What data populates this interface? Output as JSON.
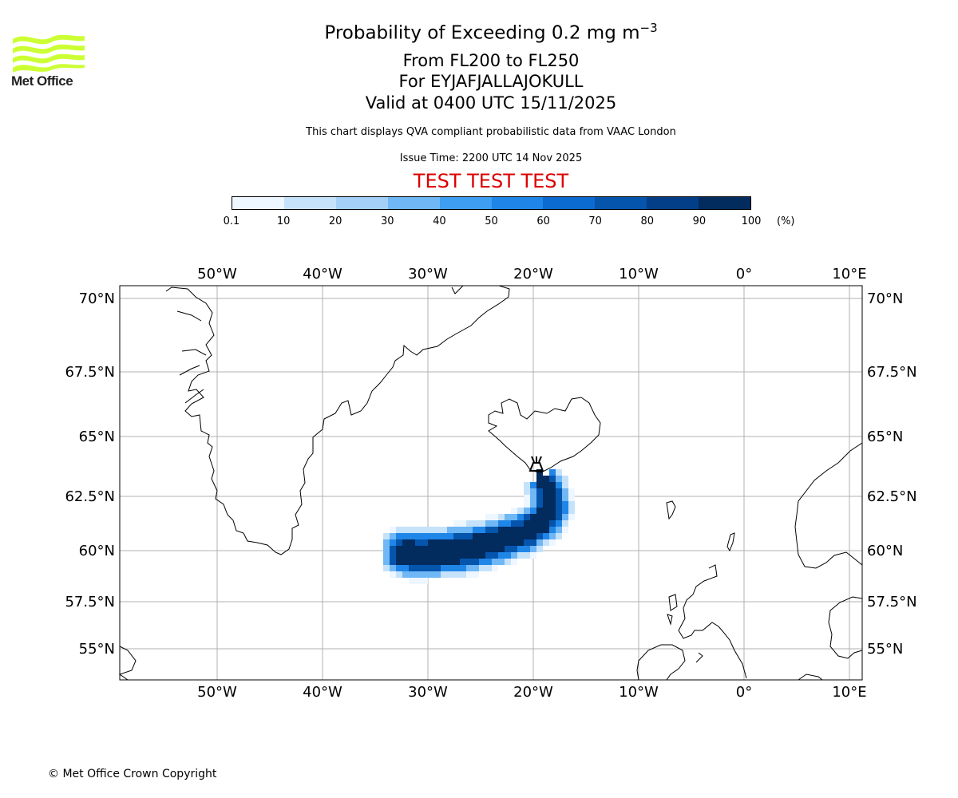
{
  "header": {
    "title_prefix": "Probability of Exceeding 0.2 mg m",
    "title_superscript": "−3",
    "line2": "From FL200 to FL250",
    "line3": "For EYJAFJALLAJOKULL",
    "line4": "Valid at 0400 UTC 15/11/2025",
    "description": "This chart displays QVA compliant probabilistic data from VAAC London",
    "issue_time": "Issue Time: 2200 UTC 14 Nov 2025",
    "test_banner": "TEST TEST TEST",
    "test_color": "#dd0000"
  },
  "logo": {
    "text": "Met Office",
    "wave_color": "#ccff33"
  },
  "colorbar": {
    "ticks": [
      "0.1",
      "10",
      "20",
      "30",
      "40",
      "50",
      "60",
      "70",
      "80",
      "90",
      "100"
    ],
    "unit": "(%)",
    "colors": [
      "#eef6ff",
      "#c6e2fb",
      "#a4d0f8",
      "#6fb7f5",
      "#3d9ef2",
      "#1f86e8",
      "#0b6bd0",
      "#0555ad",
      "#033f88",
      "#022b5e"
    ]
  },
  "map": {
    "lon_ticks": [
      "50°W",
      "40°W",
      "30°W",
      "20°W",
      "10°W",
      "0°",
      "10°E"
    ],
    "lat_ticks": [
      "70°N",
      "67.5°N",
      "65°N",
      "62.5°N",
      "60°N",
      "57.5°N",
      "55°N"
    ],
    "lon_values": [
      -50,
      -40,
      -30,
      -20,
      -10,
      0,
      10
    ],
    "lat_values": [
      70,
      67.5,
      65,
      62.5,
      60,
      57.5,
      55
    ],
    "volcano_name": "EYJAFJALLAJOKULL",
    "volcano_lon": -19.6,
    "volcano_lat": 63.6
  },
  "footer": {
    "copyright": "© Met Office Crown Copyright"
  }
}
